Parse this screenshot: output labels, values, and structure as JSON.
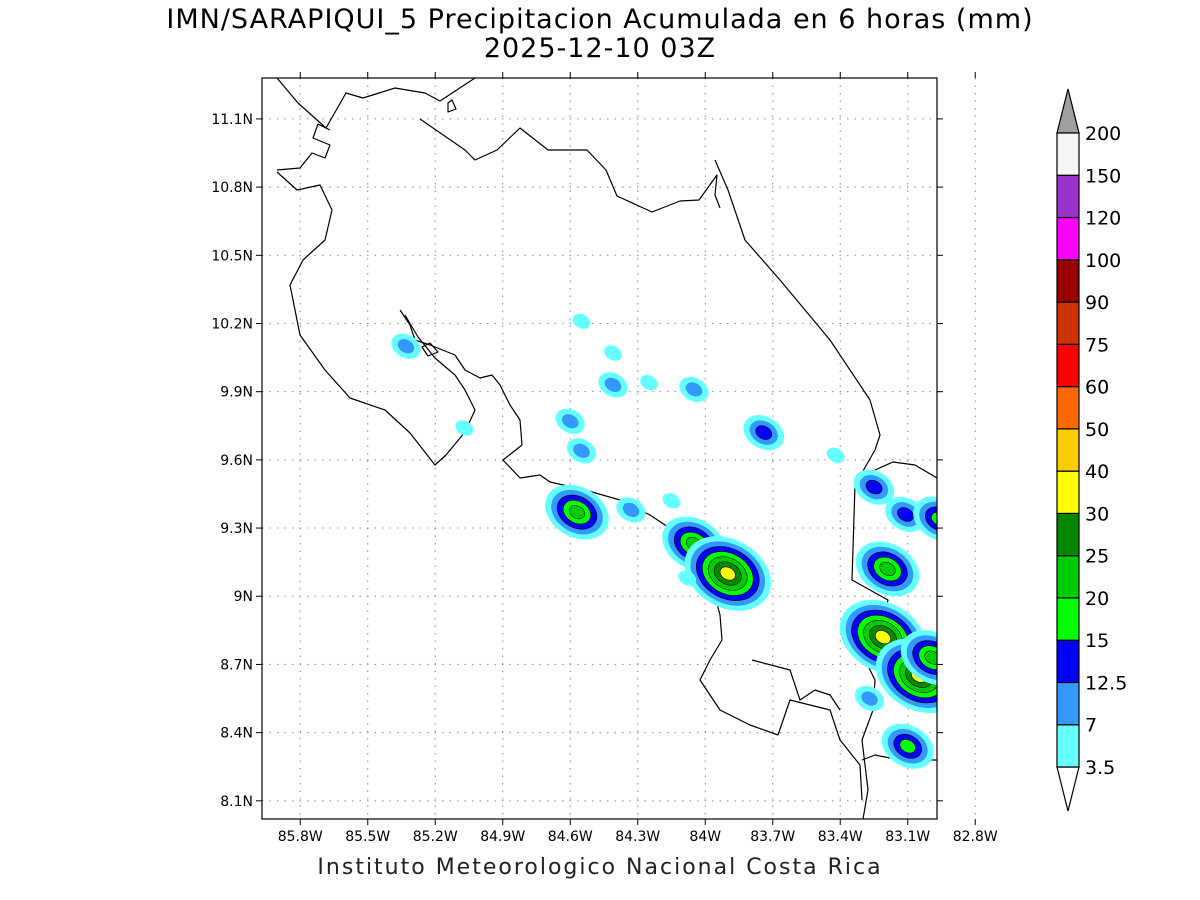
{
  "title": {
    "line1": "IMN/SARAPIQUI_5 Precipitacion Acumulada en 6 horas (mm)",
    "line2": "2025-12-10 03Z"
  },
  "footer": "Instituto Meteorologico Nacional Costa Rica",
  "map": {
    "lon_ticks": [
      {
        "value": -85.8,
        "label": "85.8W"
      },
      {
        "value": -85.5,
        "label": "85.5W"
      },
      {
        "value": -85.2,
        "label": "85.2W"
      },
      {
        "value": -84.9,
        "label": "84.9W"
      },
      {
        "value": -84.6,
        "label": "84.6W"
      },
      {
        "value": -84.3,
        "label": "84.3W"
      },
      {
        "value": -84.0,
        "label": "84W"
      },
      {
        "value": -83.7,
        "label": "83.7W"
      },
      {
        "value": -83.4,
        "label": "83.4W"
      },
      {
        "value": -83.1,
        "label": "83.1W"
      },
      {
        "value": -82.8,
        "label": "82.8W"
      }
    ],
    "lat_ticks": [
      {
        "value": 11.1,
        "label": "11.1N"
      },
      {
        "value": 10.8,
        "label": "10.8N"
      },
      {
        "value": 10.5,
        "label": "10.5N"
      },
      {
        "value": 10.2,
        "label": "10.2N"
      },
      {
        "value": 9.9,
        "label": "9.9N"
      },
      {
        "value": 9.6,
        "label": "9.6N"
      },
      {
        "value": 9.3,
        "label": "9.3N"
      },
      {
        "value": 9.0,
        "label": "9N"
      },
      {
        "value": 8.7,
        "label": "8.7N"
      },
      {
        "value": 8.4,
        "label": "8.4N"
      },
      {
        "value": 8.1,
        "label": "8.1N"
      }
    ],
    "lon_range": [
      -85.97,
      -82.97
    ],
    "lat_range": [
      8.02,
      11.28
    ],
    "grid": true,
    "precip_cells": [
      {
        "lon": -85.33,
        "lat": 10.1,
        "level": 1
      },
      {
        "lon": -84.55,
        "lat": 10.21,
        "level": 0
      },
      {
        "lon": -84.41,
        "lat": 10.07,
        "level": 0
      },
      {
        "lon": -84.41,
        "lat": 9.93,
        "level": 1
      },
      {
        "lon": -84.25,
        "lat": 9.94,
        "level": 0
      },
      {
        "lon": -84.05,
        "lat": 9.91,
        "level": 1
      },
      {
        "lon": -84.6,
        "lat": 9.77,
        "level": 1
      },
      {
        "lon": -84.55,
        "lat": 9.64,
        "level": 1
      },
      {
        "lon": -84.15,
        "lat": 9.42,
        "level": 0
      },
      {
        "lon": -85.07,
        "lat": 9.74,
        "level": 0
      },
      {
        "lon": -83.74,
        "lat": 9.72,
        "level": 2
      },
      {
        "lon": -83.42,
        "lat": 9.62,
        "level": 0
      },
      {
        "lon": -83.25,
        "lat": 9.48,
        "level": 2
      },
      {
        "lon": -84.57,
        "lat": 9.37,
        "level": 4
      },
      {
        "lon": -84.33,
        "lat": 9.38,
        "level": 1
      },
      {
        "lon": -84.05,
        "lat": 9.23,
        "level": 4
      },
      {
        "lon": -83.9,
        "lat": 9.1,
        "level": 6
      },
      {
        "lon": -84.08,
        "lat": 9.08,
        "level": 0
      },
      {
        "lon": -83.11,
        "lat": 9.36,
        "level": 2
      },
      {
        "lon": -82.96,
        "lat": 9.34,
        "level": 3
      },
      {
        "lon": -83.19,
        "lat": 9.12,
        "level": 4
      },
      {
        "lon": -83.21,
        "lat": 8.82,
        "level": 6
      },
      {
        "lon": -83.05,
        "lat": 8.65,
        "level": 6
      },
      {
        "lon": -82.99,
        "lat": 8.73,
        "level": 4
      },
      {
        "lon": -83.27,
        "lat": 8.55,
        "level": 1
      },
      {
        "lon": -83.1,
        "lat": 8.34,
        "level": 3
      }
    ]
  },
  "colorbar": {
    "colors": [
      "#66ffff",
      "#3399ff",
      "#0000ff",
      "#00ff00",
      "#00cc00",
      "#008800",
      "#ffff00",
      "#ffcc00",
      "#ff6600",
      "#ff0000",
      "#cc3300",
      "#990000",
      "#ff00ff",
      "#9933cc",
      "#f5f5f5"
    ],
    "top_arrow_color": "#a0a0a0",
    "bottom_arrow_color": "#ffffff",
    "labels": [
      "3.5",
      "7",
      "12.5",
      "15",
      "20",
      "25",
      "30",
      "40",
      "50",
      "60",
      "75",
      "90",
      "100",
      "120",
      "150",
      "200"
    ]
  },
  "boundary_color": "#000000",
  "grid_color": "#888888"
}
